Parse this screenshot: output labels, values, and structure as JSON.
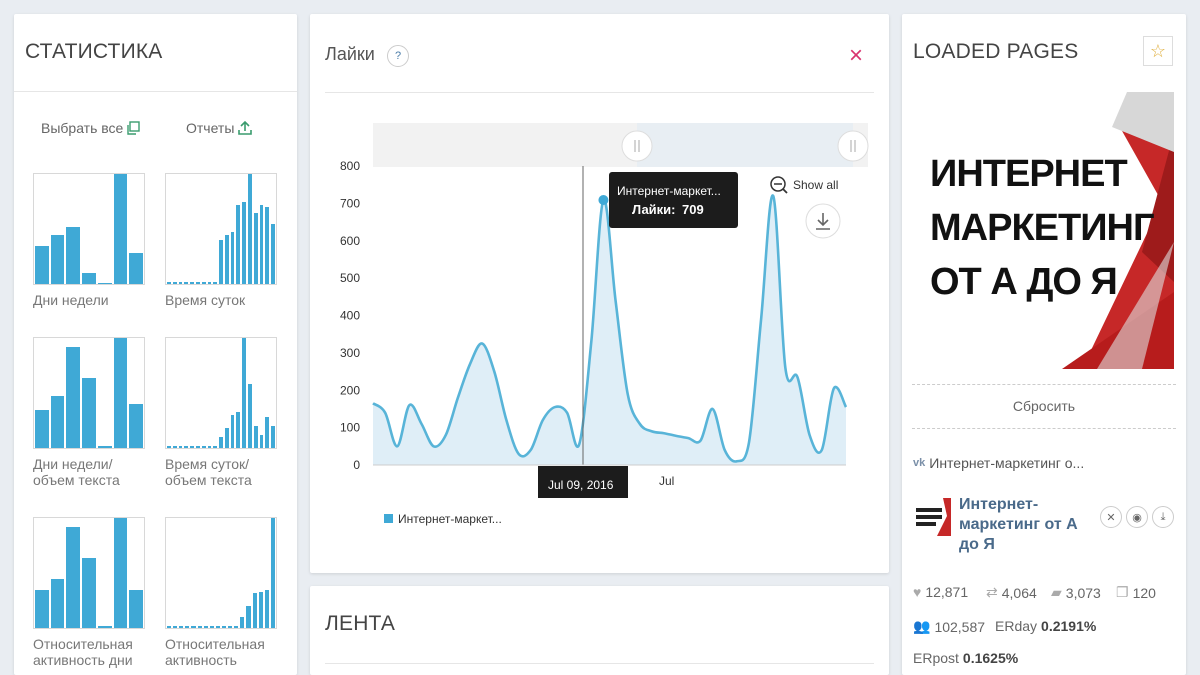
{
  "stats": {
    "title": "СТАТИСТИКА",
    "select_all": "Выбрать все",
    "reports": "Отчеты",
    "thumbs": [
      {
        "label": "Дни недели",
        "bars": [
          0.35,
          0.45,
          0.52,
          0.1,
          0,
          1.0,
          0.28
        ],
        "mode": "wide"
      },
      {
        "label": "Время суток",
        "bars": [
          0.02,
          0.02,
          0.02,
          0.02,
          0.02,
          0.02,
          0.02,
          0.02,
          0.02,
          0.4,
          0.45,
          0.47,
          0.72,
          0.75,
          1.0,
          0.65,
          0.72,
          0.7,
          0.55
        ],
        "mode": "narrow"
      },
      {
        "label": "Дни недели/ объем текста",
        "bars": [
          0.35,
          0.47,
          0.92,
          0.64,
          0.02,
          1.0,
          0.4
        ],
        "mode": "wide"
      },
      {
        "label": "Время суток/ объем текста",
        "bars": [
          0.02,
          0.02,
          0.02,
          0.02,
          0.02,
          0.02,
          0.02,
          0.02,
          0.02,
          0.1,
          0.18,
          0.3,
          0.33,
          1.0,
          0.58,
          0.2,
          0.12,
          0.28,
          0.2
        ],
        "mode": "narrow"
      },
      {
        "label": "Относительная активность дни",
        "bars": [
          0.35,
          0.45,
          0.92,
          0.64,
          0.02,
          1.0,
          0.35
        ],
        "mode": "wide"
      },
      {
        "label": "Относительная активность",
        "bars": [
          0.02,
          0.02,
          0.02,
          0.02,
          0.02,
          0.02,
          0.02,
          0.02,
          0.02,
          0.02,
          0.02,
          0.02,
          0.1,
          0.2,
          0.32,
          0.33,
          0.35,
          1.0
        ],
        "mode": "narrow"
      }
    ]
  },
  "likes": {
    "title": "Лайки",
    "help_icon": "?",
    "close_icon": "×",
    "show_all": "Show all",
    "tooltip_title": "Интернет-маркет...",
    "tooltip_label": "Лайки:",
    "tooltip_value": "709",
    "x_cursor_label": "Jul 09, 2016",
    "x_tick_label": "Jul",
    "legend": "Интернет-маркет..."
  },
  "chart_data": {
    "type": "area",
    "title": "Лайки",
    "ylim": [
      0,
      800
    ],
    "yticks": [
      0,
      100,
      200,
      300,
      400,
      500,
      600,
      700,
      800
    ],
    "series": [
      {
        "name": "Интернет-маркет...",
        "values": [
          165,
          140,
          50,
          160,
          110,
          50,
          80,
          180,
          270,
          325,
          250,
          120,
          30,
          40,
          120,
          155,
          140,
          55,
          330,
          709,
          440,
          190,
          110,
          90,
          85,
          78,
          72,
          65,
          150,
          40,
          10,
          60,
          390,
          720,
          260,
          235,
          80,
          40,
          205,
          155
        ]
      }
    ]
  },
  "feed": {
    "title": "ЛЕНТА"
  },
  "loaded": {
    "title": "LOADED PAGES",
    "banner_lines": [
      "ИНТЕРНЕТ",
      "МАРКЕТИНГ",
      "ОТ А ДО Я"
    ],
    "reset": "Сбросить",
    "source": "Интернет-маркетинг о...",
    "page_name": "Интернет-маркетинг от А до Я",
    "avatar_text": "ИНТЕРНЕТ МАРКЕТИНГ ОТ А ДО Я",
    "likes": "12,871",
    "reposts": "4,064",
    "comments": "3,073",
    "posts": "120",
    "members": "102,587",
    "erday_label": "ERday",
    "erday_value": "0.2191%",
    "erpost_label": "ERpost",
    "erpost_value": "0.1625%",
    "accent": "#3fa9d6"
  }
}
